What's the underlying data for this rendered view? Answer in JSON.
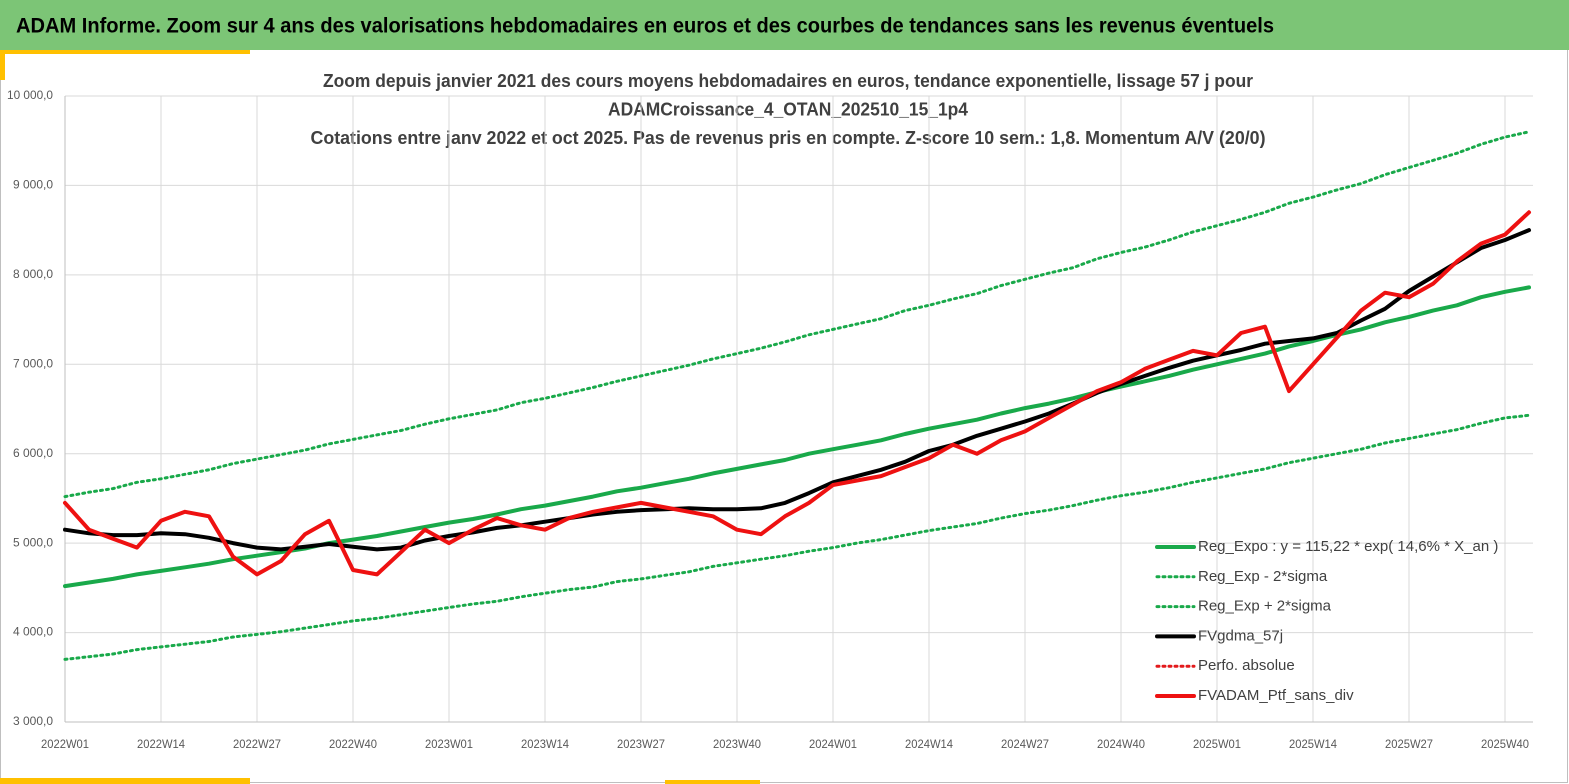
{
  "header": {
    "title": "ADAM Informe. Zoom sur 4 ans des valorisations hebdomadaires en euros et des courbes de tendances sans les revenus éventuels"
  },
  "chart_data": {
    "type": "line",
    "title_lines": [
      "Zoom depuis janvier 2021 des cours moyens hebdomadaires  en euros, tendance exponentielle, lissage 57 j pour",
      "ADAMCroissance_4_OTAN_202510_15_1p4",
      "Cotations  entre janv 2022 et oct 2025. Pas de revenus pris en compte. Z-score 10 sem.: 1,8. Momentum A/V (20/0)"
    ],
    "categories": [
      "2022W01",
      null,
      null,
      null,
      "2022W14",
      null,
      null,
      null,
      "2022W27",
      null,
      null,
      null,
      "2022W40",
      null,
      null,
      null,
      "2023W01",
      null,
      null,
      null,
      "2023W14",
      null,
      null,
      null,
      "2023W27",
      null,
      null,
      null,
      "2023W40",
      null,
      null,
      null,
      "2024W01",
      null,
      null,
      null,
      "2024W14",
      null,
      null,
      null,
      "2024W27",
      null,
      null,
      null,
      "2024W40",
      null,
      null,
      null,
      "2025W01",
      null,
      null,
      null,
      "2025W14",
      null,
      null,
      null,
      "2025W27",
      null,
      null,
      null,
      "2025W40",
      null
    ],
    "ylim": [
      3000,
      10000
    ],
    "yticks": [
      {
        "value": 3000,
        "label": "3 000,0"
      },
      {
        "value": 4000,
        "label": "4 000,0"
      },
      {
        "value": 5000,
        "label": "5 000,0"
      },
      {
        "value": 6000,
        "label": "6 000,0"
      },
      {
        "value": 7000,
        "label": "7 000,0"
      },
      {
        "value": 8000,
        "label": "8 000,0"
      },
      {
        "value": 9000,
        "label": "9 000,0"
      },
      {
        "value": 10000,
        "label": "10 000,0"
      }
    ],
    "grid": true,
    "legend": "bottom-right",
    "series": [
      {
        "name": "Reg_Expo : y = 115,22 * exp( 14,6% *  X_an )",
        "color": "#19a94a",
        "dash": false,
        "width": 4,
        "values": [
          4520,
          4560,
          4600,
          4650,
          4690,
          4730,
          4770,
          4820,
          4860,
          4900,
          4940,
          5000,
          5040,
          5080,
          5130,
          5180,
          5230,
          5270,
          5320,
          5380,
          5420,
          5470,
          5520,
          5580,
          5620,
          5670,
          5720,
          5780,
          5830,
          5880,
          5930,
          6000,
          6050,
          6100,
          6150,
          6220,
          6280,
          6330,
          6380,
          6450,
          6510,
          6560,
          6620,
          6690,
          6750,
          6810,
          6870,
          6940,
          7000,
          7060,
          7120,
          7200,
          7260,
          7330,
          7390,
          7470,
          7530,
          7600,
          7660,
          7750,
          7810,
          7860
        ]
      },
      {
        "name": "Reg_Exp - 2*sigma",
        "color": "#19a94a",
        "dash": true,
        "width": 3,
        "values": [
          3700,
          3730,
          3760,
          3810,
          3840,
          3870,
          3900,
          3950,
          3980,
          4010,
          4050,
          4090,
          4130,
          4160,
          4200,
          4240,
          4280,
          4320,
          4350,
          4400,
          4440,
          4480,
          4510,
          4570,
          4600,
          4640,
          4680,
          4740,
          4780,
          4820,
          4860,
          4910,
          4950,
          5000,
          5040,
          5090,
          5140,
          5180,
          5220,
          5280,
          5330,
          5370,
          5420,
          5480,
          5530,
          5570,
          5620,
          5680,
          5730,
          5780,
          5830,
          5900,
          5950,
          6000,
          6050,
          6120,
          6170,
          6220,
          6270,
          6340,
          6400,
          6430
        ]
      },
      {
        "name": "Reg_Exp + 2*sigma",
        "color": "#19a94a",
        "dash": true,
        "width": 3,
        "values": [
          5520,
          5570,
          5610,
          5680,
          5720,
          5770,
          5820,
          5890,
          5940,
          5990,
          6040,
          6110,
          6160,
          6210,
          6260,
          6330,
          6390,
          6440,
          6490,
          6570,
          6620,
          6680,
          6740,
          6810,
          6870,
          6930,
          6990,
          7060,
          7120,
          7180,
          7250,
          7330,
          7390,
          7450,
          7510,
          7600,
          7660,
          7730,
          7790,
          7880,
          7950,
          8020,
          8080,
          8180,
          8250,
          8310,
          8390,
          8480,
          8550,
          8620,
          8700,
          8800,
          8870,
          8950,
          9020,
          9120,
          9200,
          9280,
          9360,
          9460,
          9540,
          9600
        ]
      },
      {
        "name": "FVgdma_57j",
        "color": "#000000",
        "dash": false,
        "width": 4,
        "values": [
          5150,
          5110,
          5090,
          5090,
          5110,
          5100,
          5060,
          5000,
          4950,
          4930,
          4960,
          4990,
          4960,
          4930,
          4950,
          5030,
          5080,
          5120,
          5170,
          5200,
          5240,
          5280,
          5320,
          5350,
          5370,
          5380,
          5390,
          5380,
          5380,
          5390,
          5450,
          5560,
          5680,
          5750,
          5820,
          5910,
          6030,
          6100,
          6200,
          6280,
          6360,
          6450,
          6560,
          6680,
          6780,
          6870,
          6960,
          7040,
          7100,
          7160,
          7230,
          7260,
          7290,
          7350,
          7490,
          7620,
          7820,
          7980,
          8140,
          8300,
          8390,
          8500
        ]
      },
      {
        "name": "Perfo. absolue",
        "color": "#e31a1c",
        "dash": true,
        "width": 3,
        "values": [
          null,
          null,
          null,
          null,
          null,
          null,
          null,
          null,
          null,
          null,
          null,
          null,
          null,
          null,
          null,
          null,
          null,
          null,
          null,
          null,
          null,
          null,
          null,
          null,
          null,
          null,
          null,
          null,
          null,
          null,
          null,
          null,
          null,
          null,
          null,
          null,
          null,
          null,
          null,
          null,
          null,
          null,
          null,
          null,
          null,
          null,
          null,
          null,
          null,
          null,
          null,
          null,
          null,
          null,
          null,
          null,
          null,
          null,
          null,
          null,
          null,
          null
        ]
      },
      {
        "name": "FVADAM_Ptf_sans_div",
        "color": "#ee1111",
        "dash": false,
        "width": 4,
        "values": [
          5450,
          5150,
          5050,
          4950,
          5250,
          5350,
          5300,
          4850,
          4650,
          4800,
          5100,
          5250,
          4700,
          4650,
          4900,
          5150,
          5000,
          5150,
          5280,
          5200,
          5150,
          5280,
          5350,
          5400,
          5450,
          5400,
          5350,
          5300,
          5150,
          5100,
          5300,
          5450,
          5650,
          5700,
          5750,
          5850,
          5950,
          6100,
          6000,
          6150,
          6250,
          6400,
          6550,
          6700,
          6800,
          6950,
          7050,
          7150,
          7100,
          7350,
          7420,
          6700,
          7000,
          7300,
          7600,
          7800,
          7750,
          7900,
          8150,
          8350,
          8450,
          8700
        ]
      }
    ]
  }
}
